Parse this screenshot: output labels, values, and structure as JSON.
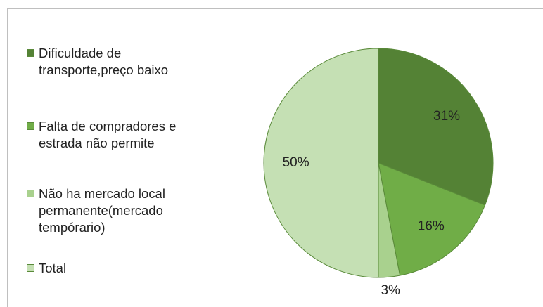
{
  "chart_data": {
    "type": "pie",
    "categories": [
      "Dificuldade de transporte,preço baixo",
      "Falta de compradores e estrada não permite",
      "Não ha mercado local permanente(mercado tempórario)",
      "Total"
    ],
    "values": [
      31,
      16,
      3,
      50
    ],
    "value_labels": [
      "31%",
      "16%",
      "3%",
      "50%"
    ],
    "colors": [
      "#548235",
      "#70ad47",
      "#a9d18e",
      "#c5e0b4"
    ],
    "legend": "left"
  }
}
